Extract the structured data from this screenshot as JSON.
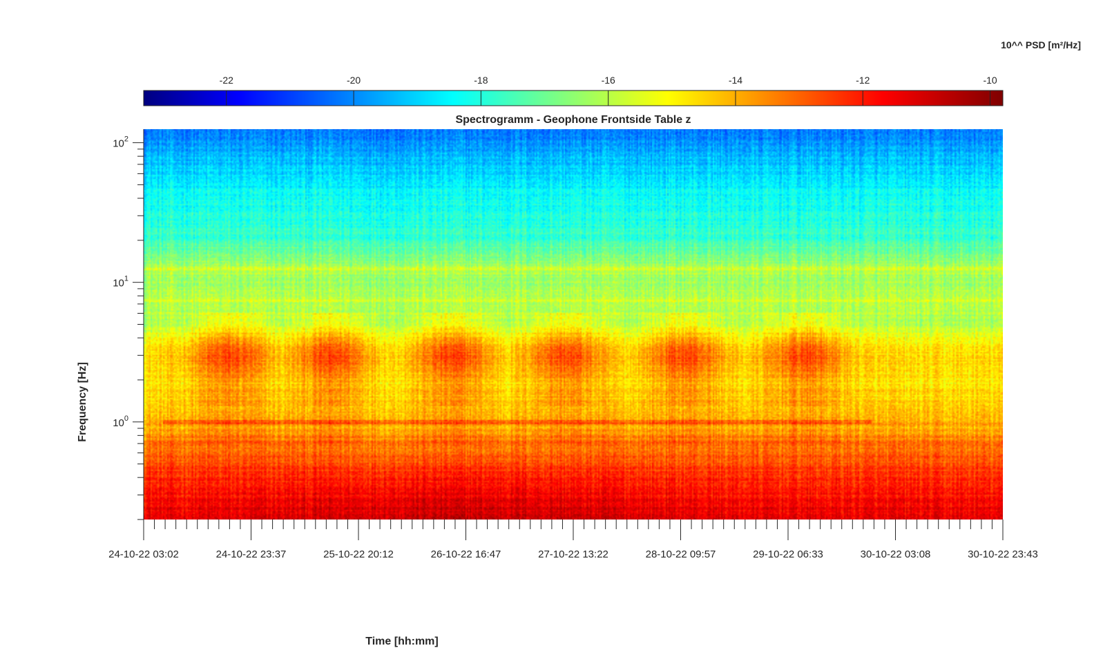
{
  "chart_data": {
    "type": "heatmap",
    "title": "Spectrogramm - Geophone Frontside Table z",
    "xlabel": "Time [hh:mm]",
    "ylabel": "Frequency [Hz]",
    "y_scale": "log",
    "ylim": [
      0.2,
      125
    ],
    "y_ticks": [
      {
        "value": 100,
        "base": "10",
        "exp": "2"
      },
      {
        "value": 10,
        "base": "10",
        "exp": "1"
      },
      {
        "value": 1,
        "base": "10",
        "exp": "0"
      }
    ],
    "x_ticks": [
      "24-10-22 03:02",
      "24-10-22 23:37",
      "25-10-22 20:12",
      "26-10-22 16:47",
      "27-10-22 13:22",
      "28-10-22 09:57",
      "29-10-22 06:33",
      "30-10-22 03:08",
      "30-10-22 23:43"
    ],
    "colorbar": {
      "label": "10^^ PSD [m²/Hz]",
      "range": [
        -23.3,
        -9.8
      ],
      "ticks": [
        "-22",
        "-20",
        "-18",
        "-16",
        "-14",
        "-12",
        "-10"
      ],
      "tick_values": [
        -22,
        -20,
        -18,
        -16,
        -14,
        -12,
        -10
      ],
      "colormap": "jet",
      "location": "top"
    },
    "daily_activity_bands_hz": [
      2.5,
      4.0
    ],
    "daily_activity_centers_time": [
      "24-10-22 18:00",
      "25-10-22 14:00",
      "26-10-22 11:00",
      "27-10-22 07:00",
      "28-10-22 08:00",
      "29-10-22 06:00"
    ],
    "line_features_hz": [
      1.0,
      12.5,
      7.5,
      60
    ],
    "spectrum_profile": {
      "freq_hz": [
        0.2,
        0.3,
        0.5,
        0.7,
        0.9,
        1.0,
        1.3,
        2.0,
        3.0,
        4.0,
        5.0,
        7.0,
        10.0,
        13.0,
        20.0,
        50.0,
        100.0,
        125.0
      ],
      "log_psd": [
        -11.3,
        -11.9,
        -12.7,
        -13.2,
        -14.1,
        -13.9,
        -14.4,
        -14.9,
        -14.6,
        -15.2,
        -16.2,
        -16.0,
        -16.3,
        -16.2,
        -17.7,
        -18.6,
        -19.8,
        -20.3
      ]
    }
  },
  "colors": {
    "jet_stops": [
      "#00007f",
      "#0000ff",
      "#007fff",
      "#00ffff",
      "#7fff7f",
      "#ffff00",
      "#ff7f00",
      "#ff0000",
      "#7f0000"
    ]
  }
}
